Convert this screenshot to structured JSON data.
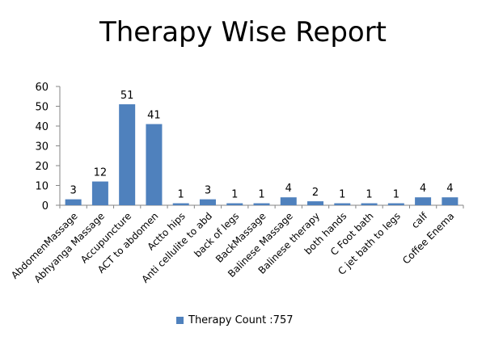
{
  "chart_data": {
    "type": "bar",
    "title": "Therapy Wise Report",
    "xlabel": "",
    "ylabel": "",
    "ylim": [
      0,
      60
    ],
    "yticks": [
      0,
      10,
      20,
      30,
      40,
      50,
      60
    ],
    "grid": false,
    "legend_position": "bottom",
    "bar_color": "#4F81BD",
    "categories": [
      "AbdomenMassage",
      "Abhyanga Massage",
      "Accupuncture",
      "ACT to abdomen",
      "Actto hips",
      "Anti cellulite to abd",
      "back of legs",
      "BackMassage",
      "Balinese Massage",
      "Balinese therapy",
      "both hands",
      "C Foot bath",
      "C jet bath to legs",
      "calf",
      "Coffee Enema"
    ],
    "series": [
      {
        "name": "Therapy Count :757",
        "values": [
          3,
          12,
          51,
          41,
          1,
          3,
          1,
          1,
          4,
          2,
          1,
          1,
          1,
          4,
          4
        ]
      }
    ]
  }
}
